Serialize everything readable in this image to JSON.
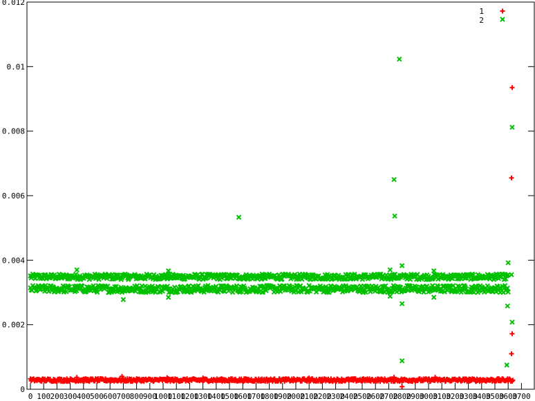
{
  "chart_data": {
    "type": "scatter",
    "title": "",
    "xlabel": "",
    "ylabel": "",
    "xlim": [
      0,
      1700
    ],
    "ylim": [
      0,
      0.012
    ],
    "x_ticks": [
      0,
      100,
      200,
      300,
      400,
      500,
      600,
      700,
      800,
      900,
      1000,
      1100,
      1200,
      1300,
      1400,
      1500,
      1600,
      1700,
      1800,
      1900,
      2000,
      2100,
      2200,
      2300,
      2400,
      2500,
      2600,
      2700,
      2800,
      2900,
      3000,
      3100,
      3200,
      3300,
      3400,
      3500,
      3600,
      3700
    ],
    "x_tick_labels": [
      "0",
      "100",
      "200",
      "300",
      "400",
      "500",
      "600",
      "700",
      "800",
      "900",
      "1000",
      "1100",
      "1200",
      "1300",
      "1400",
      "1500",
      "1600",
      "1700",
      "1800",
      "1900",
      "2000",
      "2100",
      "2200",
      "2300",
      "2400",
      "2500",
      "2600",
      "2700",
      "2800",
      "2900",
      "3000",
      "3100",
      "3200",
      "3300",
      "3400",
      "3500",
      "3600",
      "3700"
    ],
    "y_ticks": [
      0,
      0.002,
      0.004,
      0.006,
      0.008,
      0.01,
      0.012
    ],
    "y_tick_labels": [
      "0",
      "0.002",
      "0.004",
      "0.006",
      "0.008",
      "0.01",
      "0.012"
    ],
    "grid": false,
    "legend_position": "top-right",
    "series": [
      {
        "name": "1",
        "marker": "plus",
        "color": "#ff0000",
        "band": {
          "x_range": [
            0,
            3635
          ],
          "y_range": [
            0.00024,
            0.00033
          ]
        },
        "outliers": [
          [
            350,
            0.00037
          ],
          [
            690,
            0.0004
          ],
          [
            1030,
            0.00036
          ],
          [
            1300,
            0.00035
          ],
          [
            2100,
            0.00035
          ],
          [
            2740,
            0.00037
          ],
          [
            2800,
            8e-05
          ],
          [
            3050,
            0.00037
          ],
          [
            3630,
            0.00935
          ],
          [
            3625,
            0.00655
          ],
          [
            3630,
            0.00172
          ],
          [
            3625,
            0.0011
          ]
        ]
      },
      {
        "name": "2",
        "marker": "x",
        "color": "#00c000",
        "band_upper": {
          "x_range": [
            0,
            3600
          ],
          "y_range": [
            0.0034,
            0.00357
          ]
        },
        "band_lower": {
          "x_range": [
            0,
            3600
          ],
          "y_range": [
            0.003,
            0.00322
          ]
        },
        "outliers": [
          [
            350,
            0.0037
          ],
          [
            700,
            0.00278
          ],
          [
            1040,
            0.00367
          ],
          [
            1040,
            0.00285
          ],
          [
            1570,
            0.00533
          ],
          [
            2710,
            0.0037
          ],
          [
            2710,
            0.00288
          ],
          [
            2740,
            0.0065
          ],
          [
            2745,
            0.00537
          ],
          [
            2780,
            0.01023
          ],
          [
            2800,
            0.00383
          ],
          [
            2800,
            0.00265
          ],
          [
            2800,
            0.00088
          ],
          [
            3040,
            0.00367
          ],
          [
            3040,
            0.00285
          ],
          [
            3600,
            0.00392
          ],
          [
            3595,
            0.00258
          ],
          [
            3590,
            0.00075
          ],
          [
            3630,
            0.00812
          ],
          [
            3630,
            0.00208
          ],
          [
            3625,
            0.00355
          ]
        ]
      }
    ]
  }
}
